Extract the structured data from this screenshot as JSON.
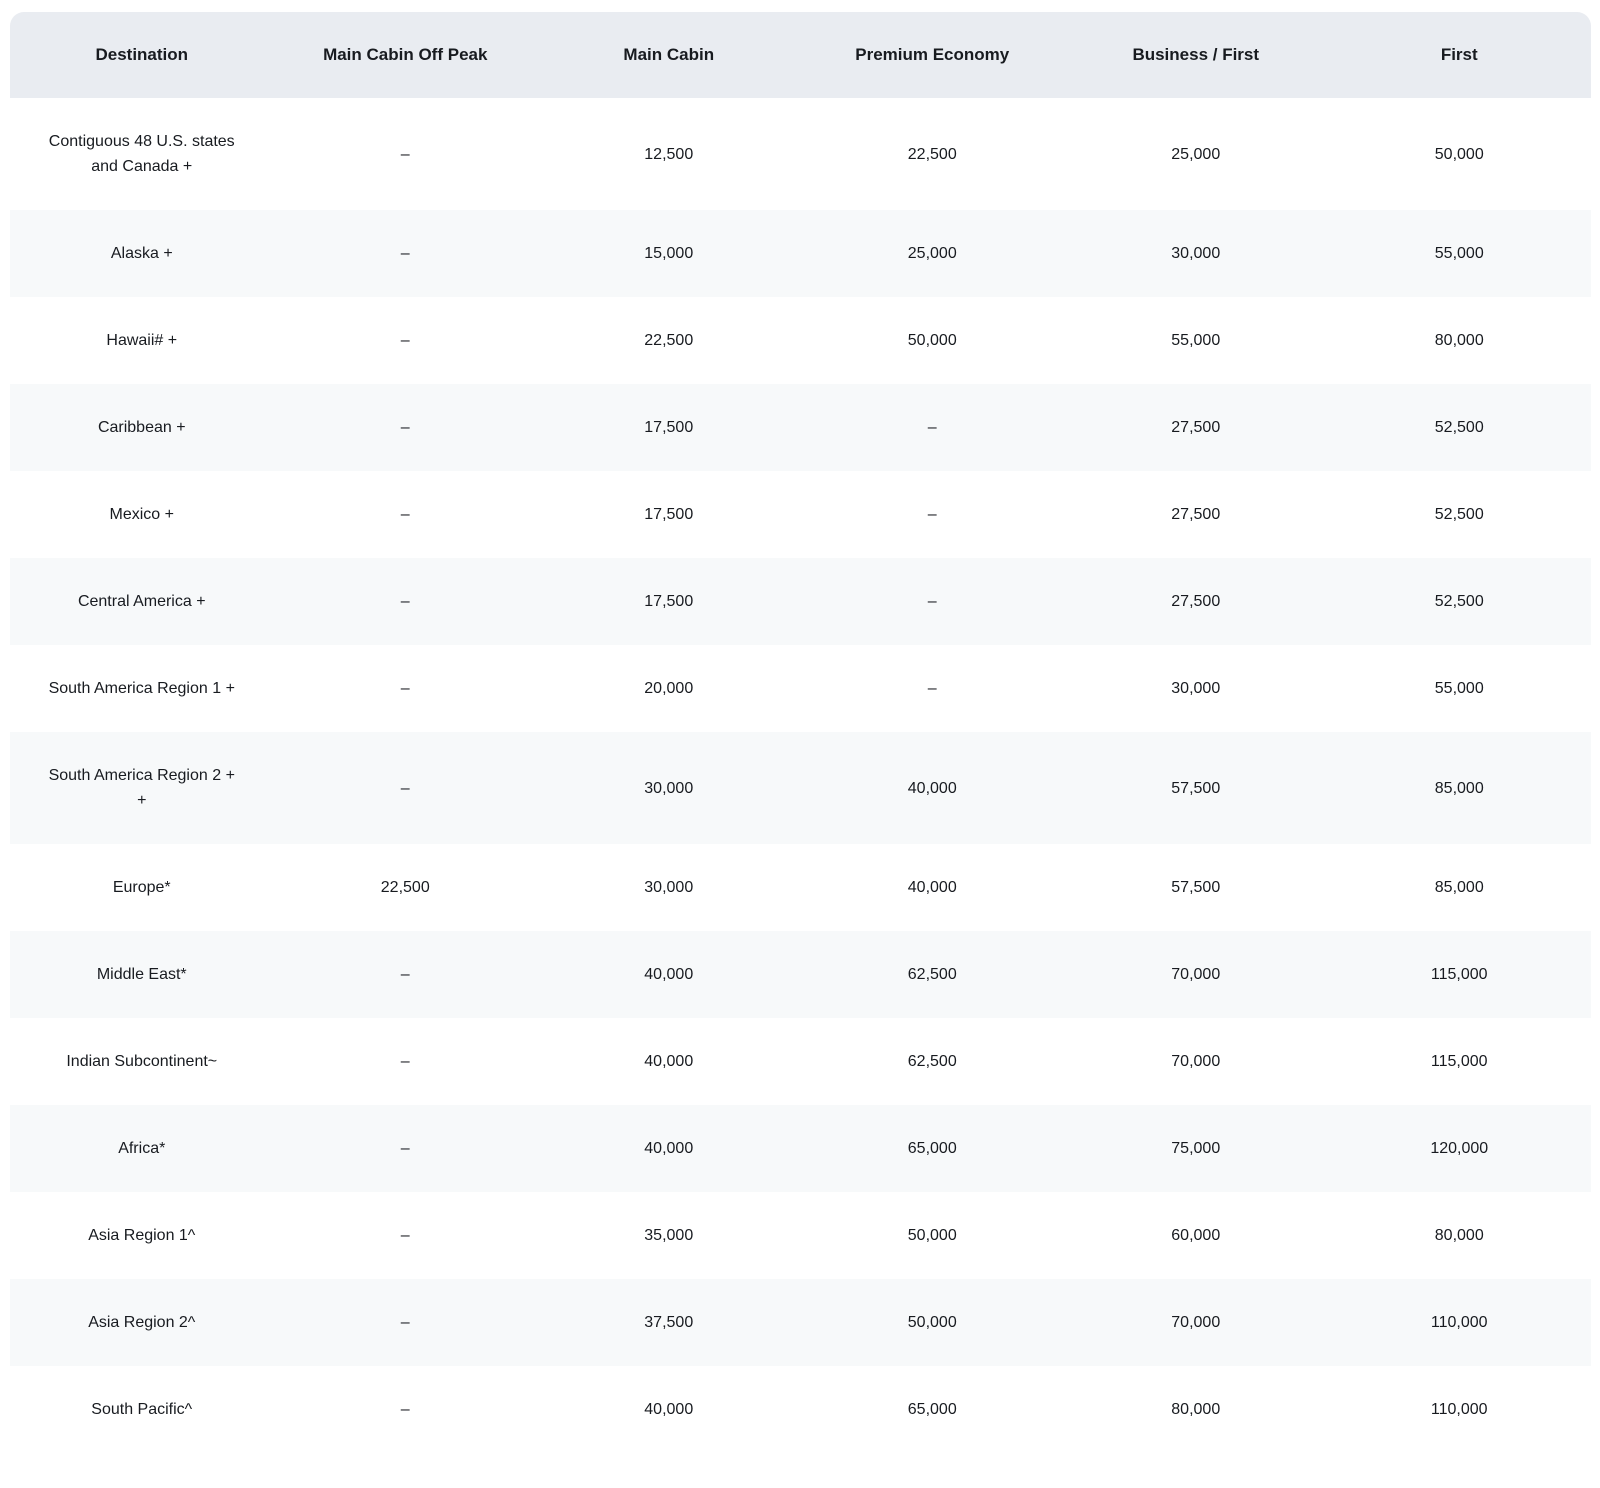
{
  "colors": {
    "header_bg": "#e9ecf1",
    "stripe_bg": "#f7f9fa",
    "text": "#181b20"
  },
  "chart_data": {
    "type": "table",
    "columns": [
      {
        "key": "destination",
        "label": "Destination"
      },
      {
        "key": "main_cabin_off_peak",
        "label": "Main Cabin Off Peak"
      },
      {
        "key": "main_cabin",
        "label": "Main Cabin"
      },
      {
        "key": "premium_economy",
        "label": "Premium Economy"
      },
      {
        "key": "business_first",
        "label": "Business / First"
      },
      {
        "key": "first",
        "label": "First"
      }
    ],
    "rows": [
      {
        "destination": "Contiguous 48 U.S. states\nand Canada +",
        "main_cabin_off_peak": "–",
        "main_cabin": "12,500",
        "premium_economy": "22,500",
        "business_first": "25,000",
        "first": "50,000"
      },
      {
        "destination": "Alaska +",
        "main_cabin_off_peak": "–",
        "main_cabin": "15,000",
        "premium_economy": "25,000",
        "business_first": "30,000",
        "first": "55,000"
      },
      {
        "destination": "Hawaii# +",
        "main_cabin_off_peak": "–",
        "main_cabin": "22,500",
        "premium_economy": "50,000",
        "business_first": "55,000",
        "first": "80,000"
      },
      {
        "destination": "Caribbean +",
        "main_cabin_off_peak": "–",
        "main_cabin": "17,500",
        "premium_economy": "–",
        "business_first": "27,500",
        "first": "52,500"
      },
      {
        "destination": "Mexico +",
        "main_cabin_off_peak": "–",
        "main_cabin": "17,500",
        "premium_economy": "–",
        "business_first": "27,500",
        "first": "52,500"
      },
      {
        "destination": "Central America +",
        "main_cabin_off_peak": "–",
        "main_cabin": "17,500",
        "premium_economy": "–",
        "business_first": "27,500",
        "first": "52,500"
      },
      {
        "destination": "South America Region 1 +",
        "main_cabin_off_peak": "–",
        "main_cabin": "20,000",
        "premium_economy": "–",
        "business_first": "30,000",
        "first": "55,000"
      },
      {
        "destination": "South America Region 2 +\n+",
        "main_cabin_off_peak": "–",
        "main_cabin": "30,000",
        "premium_economy": "40,000",
        "business_first": "57,500",
        "first": "85,000"
      },
      {
        "destination": "Europe*",
        "main_cabin_off_peak": "22,500",
        "main_cabin": "30,000",
        "premium_economy": "40,000",
        "business_first": "57,500",
        "first": "85,000"
      },
      {
        "destination": "Middle East*",
        "main_cabin_off_peak": "–",
        "main_cabin": "40,000",
        "premium_economy": "62,500",
        "business_first": "70,000",
        "first": "115,000"
      },
      {
        "destination": "Indian Subcontinent~",
        "main_cabin_off_peak": "–",
        "main_cabin": "40,000",
        "premium_economy": "62,500",
        "business_first": "70,000",
        "first": "115,000"
      },
      {
        "destination": "Africa*",
        "main_cabin_off_peak": "–",
        "main_cabin": "40,000",
        "premium_economy": "65,000",
        "business_first": "75,000",
        "first": "120,000"
      },
      {
        "destination": "Asia Region 1^",
        "main_cabin_off_peak": "–",
        "main_cabin": "35,000",
        "premium_economy": "50,000",
        "business_first": "60,000",
        "first": "80,000"
      },
      {
        "destination": "Asia Region 2^",
        "main_cabin_off_peak": "–",
        "main_cabin": "37,500",
        "premium_economy": "50,000",
        "business_first": "70,000",
        "first": "110,000"
      },
      {
        "destination": "South Pacific^",
        "main_cabin_off_peak": "–",
        "main_cabin": "40,000",
        "premium_economy": "65,000",
        "business_first": "80,000",
        "first": "110,000"
      }
    ]
  }
}
